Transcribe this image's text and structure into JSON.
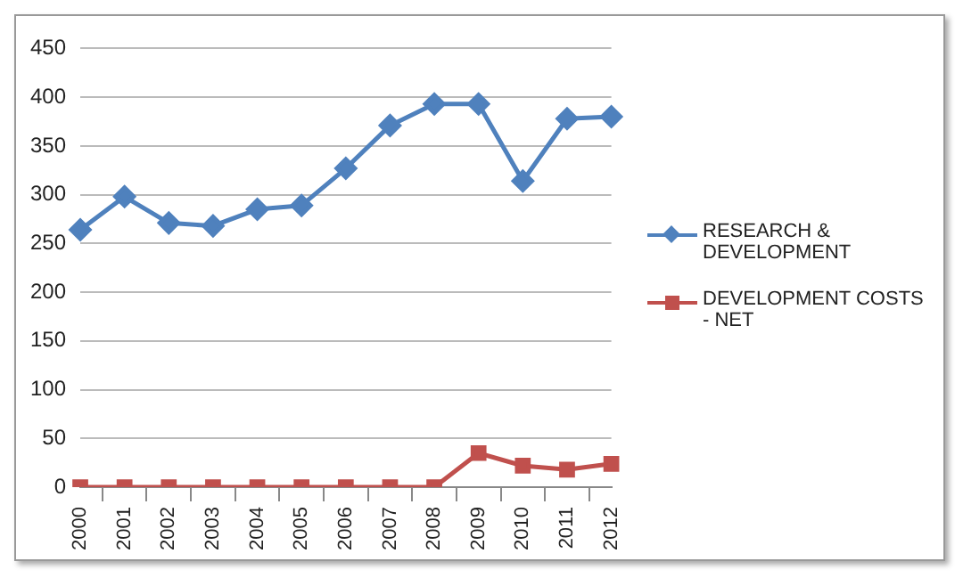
{
  "chart_data": {
    "type": "line",
    "categories": [
      "2000",
      "2001",
      "2002",
      "2003",
      "2004",
      "2005",
      "2006",
      "2007",
      "2008",
      "2009",
      "2010",
      "2011",
      "2012"
    ],
    "series": [
      {
        "name": "RESEARCH & DEVELOPMENT",
        "color": "#4f81bd",
        "marker": "diamond",
        "values": [
          264,
          298,
          271,
          268,
          285,
          289,
          327,
          371,
          393,
          393,
          314,
          378,
          380
        ]
      },
      {
        "name": "DEVELOPMENT COSTS - NET",
        "color": "#c0504d",
        "marker": "square",
        "values": [
          0,
          0,
          0,
          0,
          0,
          0,
          0,
          0,
          0,
          35,
          22,
          18,
          24
        ]
      }
    ],
    "ylim": [
      0,
      450
    ],
    "yticks": [
      0,
      50,
      100,
      150,
      200,
      250,
      300,
      350,
      400,
      450
    ],
    "grid": "y",
    "legend": "right"
  }
}
